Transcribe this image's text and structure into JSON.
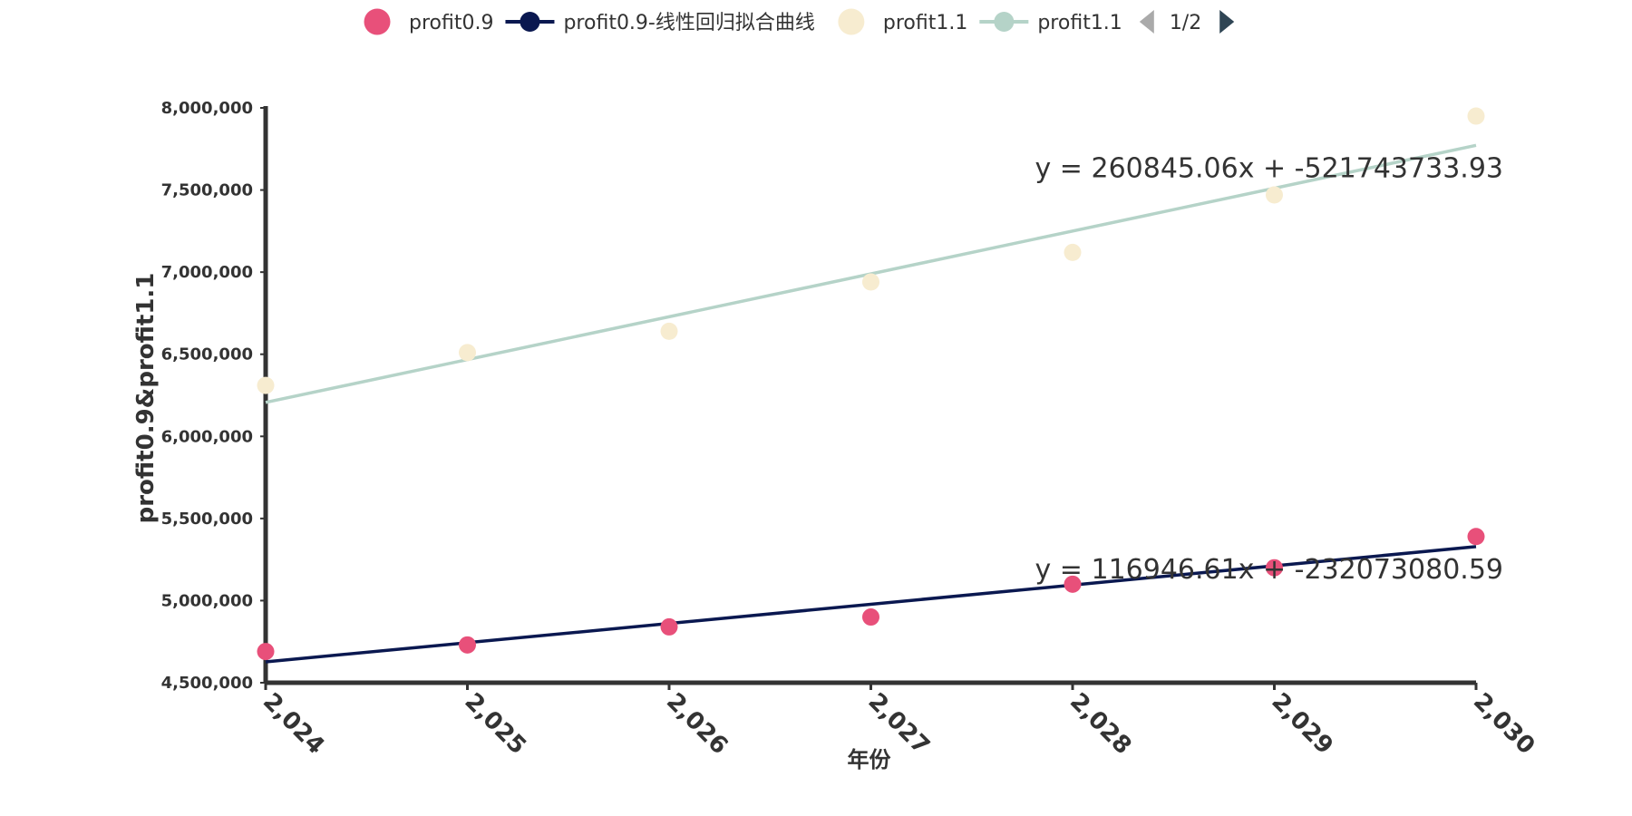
{
  "chart_data": {
    "type": "scatter",
    "xlabel": "年份",
    "ylabel": "profit0.9&profit1.1",
    "x_ticks": [
      "2,024",
      "2,025",
      "2,026",
      "2,027",
      "2,028",
      "2,029",
      "2,030"
    ],
    "y_ticks": [
      "4,500,000",
      "5,000,000",
      "5,500,000",
      "6,000,000",
      "6,500,000",
      "7,000,000",
      "7,500,000",
      "8,000,000"
    ],
    "xlim": [
      2024,
      2030
    ],
    "ylim": [
      4500000,
      8000000
    ],
    "grid": false,
    "legend_position": "top",
    "series": [
      {
        "name": "profit0.9",
        "kind": "scatter",
        "color": "#e8507a",
        "x": [
          2024,
          2025,
          2026,
          2027,
          2028,
          2029,
          2030
        ],
        "y": [
          4690000,
          4730000,
          4840000,
          4900000,
          5100000,
          5200000,
          5390000
        ]
      },
      {
        "name": "profit0.9-线性回归拟合曲线",
        "kind": "line",
        "color": "#0a1850",
        "slope": 116946.61,
        "intercept": -232073080.59,
        "equation": "y = 116946.61x + -232073080.59",
        "x": [
          2024,
          2030
        ]
      },
      {
        "name": "profit1.1",
        "kind": "scatter",
        "color": "#f7ecd0",
        "x": [
          2024,
          2025,
          2026,
          2027,
          2028,
          2029,
          2030
        ],
        "y": [
          6310000,
          6510000,
          6640000,
          6940000,
          7120000,
          7470000,
          7950000
        ]
      },
      {
        "name": "profit1.1",
        "kind": "line",
        "color": "#b5d3c8",
        "slope": 260845.06,
        "intercept": -521743733.93,
        "equation": "y = 260845.06x + -521743733.93",
        "x": [
          2024,
          2030
        ]
      }
    ],
    "legend_page": "1/2"
  },
  "legend": {
    "prev_icon": "triangle-left-icon",
    "next_icon": "triangle-right-icon",
    "prev_color": "#aaaaaa",
    "next_color": "#2f4554"
  }
}
